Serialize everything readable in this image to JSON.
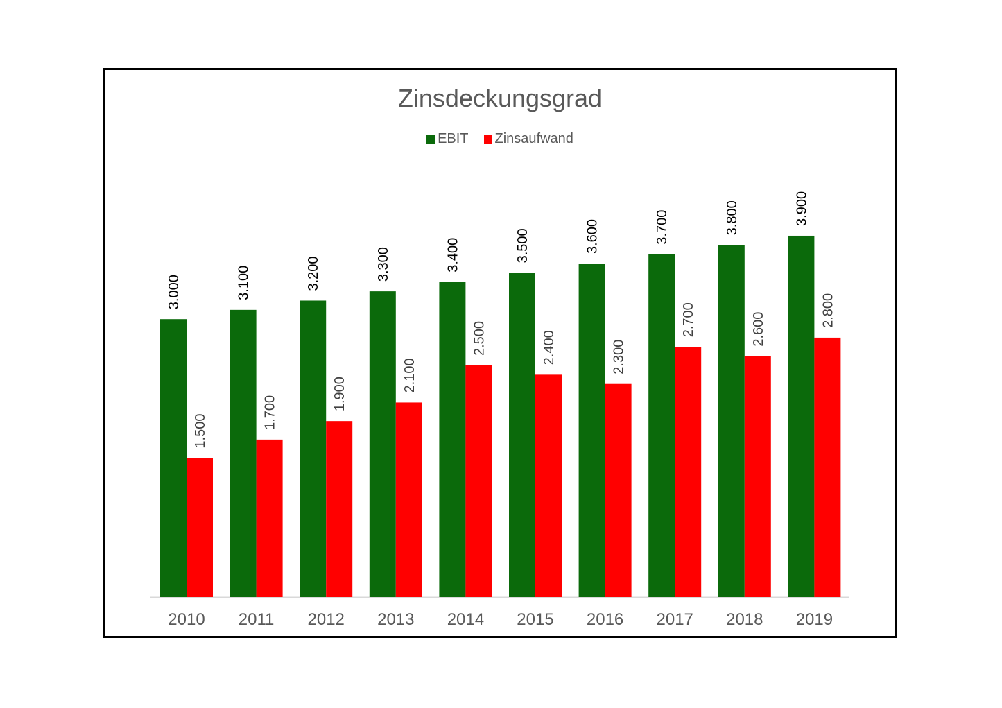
{
  "chart_data": {
    "type": "bar",
    "title": "Zinsdeckungsgrad",
    "categories": [
      "2010",
      "2011",
      "2012",
      "2013",
      "2014",
      "2015",
      "2016",
      "2017",
      "2018",
      "2019"
    ],
    "series": [
      {
        "name": "EBIT",
        "color": "#0b6a0b",
        "values": [
          3000,
          3100,
          3200,
          3300,
          3400,
          3500,
          3600,
          3700,
          3800,
          3900
        ],
        "labels": [
          "3.000",
          "3.100",
          "3.200",
          "3.300",
          "3.400",
          "3.500",
          "3.600",
          "3.700",
          "3.800",
          "3.900"
        ],
        "label_color": "#000000"
      },
      {
        "name": "Zinsaufwand",
        "color": "#ff0000",
        "values": [
          1500,
          1700,
          1900,
          2100,
          2500,
          2400,
          2300,
          2700,
          2600,
          2800
        ],
        "labels": [
          "1.500",
          "1.700",
          "1.900",
          "2.100",
          "2.500",
          "2.400",
          "2.300",
          "2.700",
          "2.600",
          "2.800"
        ],
        "label_color": "#404040"
      }
    ],
    "ylim": [
      0,
      4500
    ],
    "grid": false,
    "legend_position": "top-center"
  }
}
